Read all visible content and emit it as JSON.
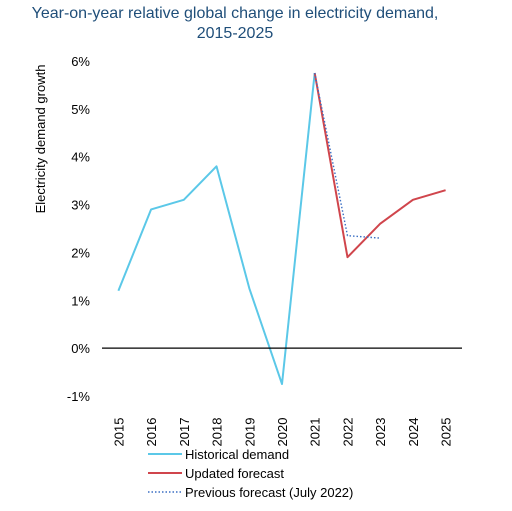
{
  "chart_data": {
    "type": "line",
    "title_line1": "Year-on-year relative global change in electricity demand,",
    "title_line2": "2015-2025",
    "ylabel": "Electricity demand growth",
    "xlabel": "",
    "ylim": [
      -1,
      6
    ],
    "yticks": [
      "-1%",
      "0%",
      "1%",
      "2%",
      "3%",
      "4%",
      "5%",
      "6%"
    ],
    "categories": [
      "2015",
      "2016",
      "2017",
      "2018",
      "2019",
      "2020",
      "2021",
      "2022",
      "2023",
      "2024",
      "2025"
    ],
    "grid": false,
    "legend_position": "bottom",
    "series": [
      {
        "name": "Historical demand",
        "color": "#5bc8e8",
        "style": "solid",
        "points": [
          {
            "x": "2015",
            "y": 1.2
          },
          {
            "x": "2016",
            "y": 2.9
          },
          {
            "x": "2017",
            "y": 3.1
          },
          {
            "x": "2018",
            "y": 3.8
          },
          {
            "x": "2019",
            "y": 1.25
          },
          {
            "x": "2020",
            "y": -0.75
          },
          {
            "x": "2021",
            "y": 5.75
          }
        ]
      },
      {
        "name": "Updated forecast",
        "color": "#d0454c",
        "style": "solid",
        "points": [
          {
            "x": "2021",
            "y": 5.75
          },
          {
            "x": "2022",
            "y": 1.9
          },
          {
            "x": "2023",
            "y": 2.6
          },
          {
            "x": "2024",
            "y": 3.1
          },
          {
            "x": "2025",
            "y": 3.3
          }
        ]
      },
      {
        "name": "Previous forecast (July 2022)",
        "color": "#3b6fc4",
        "style": "dotted",
        "points": [
          {
            "x": "2021",
            "y": 5.75
          },
          {
            "x": "2022",
            "y": 2.35
          },
          {
            "x": "2023",
            "y": 2.3
          }
        ]
      }
    ]
  }
}
